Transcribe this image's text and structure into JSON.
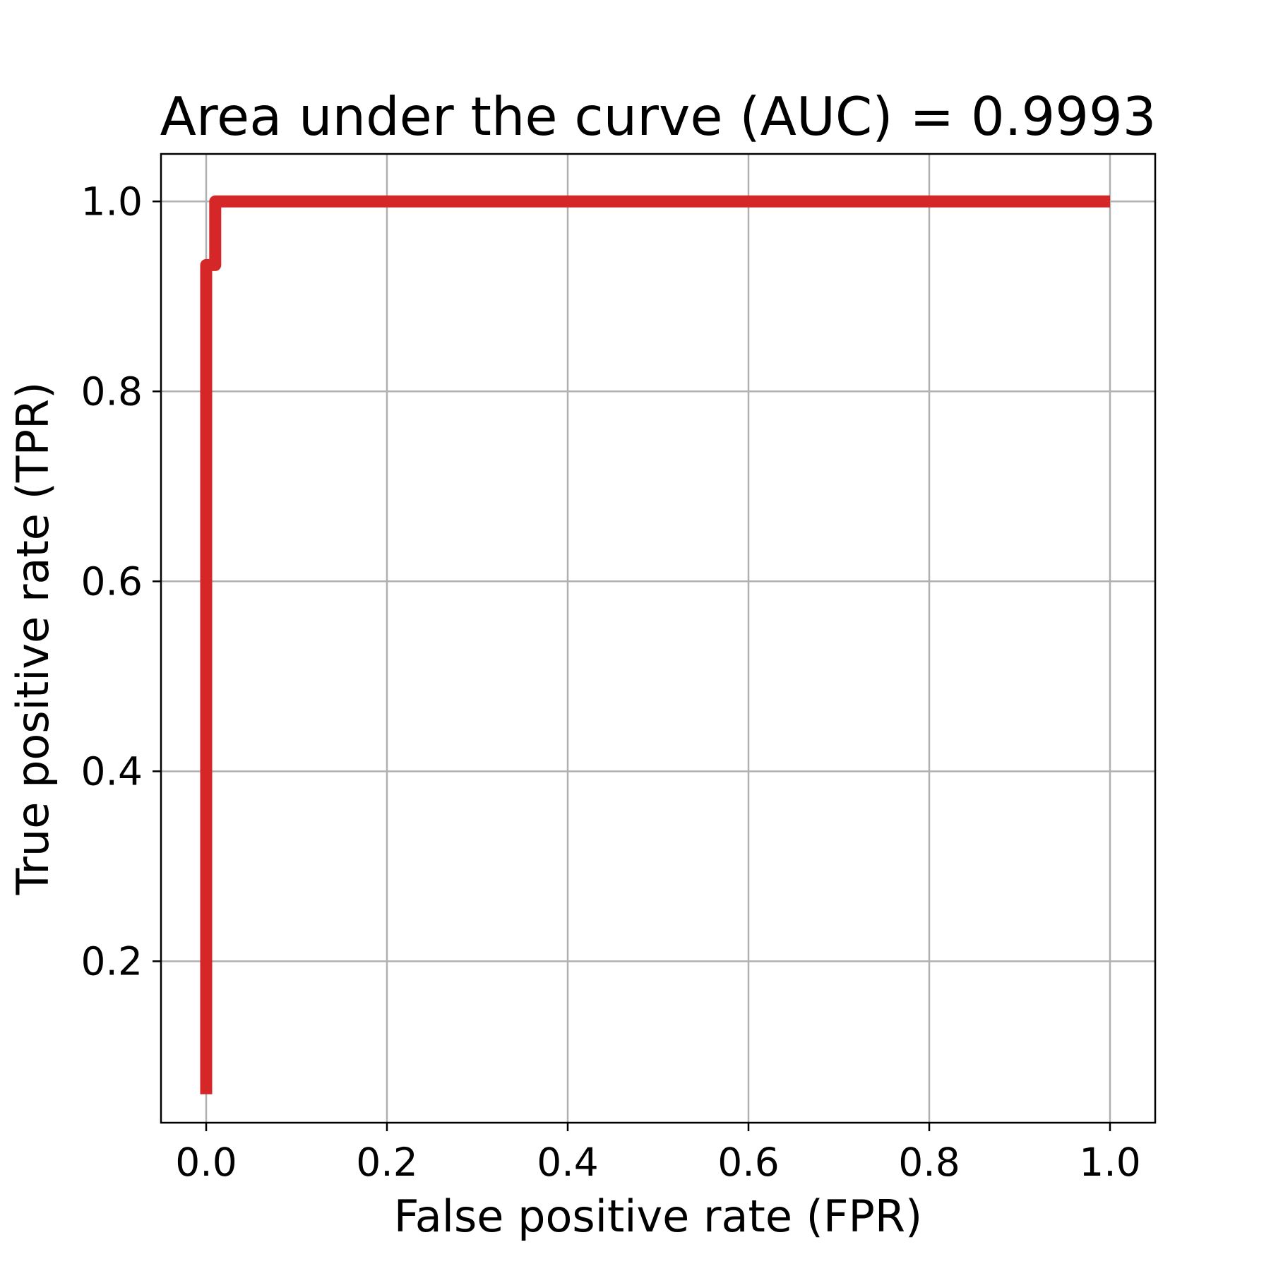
{
  "chart_data": {
    "type": "line",
    "title": "Area under the curve (AUC) = 0.9993",
    "xlabel": "False positive rate (FPR)",
    "ylabel": "True positive rate (TPR)",
    "xlim": [
      -0.05,
      1.05
    ],
    "ylim": [
      0.03,
      1.05
    ],
    "grid": true,
    "line_color": "#d62728",
    "grid_color": "#b0b0b0",
    "x_ticks": [
      {
        "value": 0.0,
        "label": "0.0"
      },
      {
        "value": 0.2,
        "label": "0.2"
      },
      {
        "value": 0.4,
        "label": "0.4"
      },
      {
        "value": 0.6,
        "label": "0.6"
      },
      {
        "value": 0.8,
        "label": "0.8"
      },
      {
        "value": 1.0,
        "label": "1.0"
      }
    ],
    "y_ticks": [
      {
        "value": 0.2,
        "label": "0.2"
      },
      {
        "value": 0.4,
        "label": "0.4"
      },
      {
        "value": 0.6,
        "label": "0.6"
      },
      {
        "value": 0.8,
        "label": "0.8"
      },
      {
        "value": 1.0,
        "label": "1.0"
      }
    ],
    "series": [
      {
        "x": [
          0.0,
          0.0,
          0.01,
          0.01,
          1.0
        ],
        "y": [
          0.06,
          0.933,
          0.933,
          1.0,
          1.0
        ]
      }
    ]
  }
}
